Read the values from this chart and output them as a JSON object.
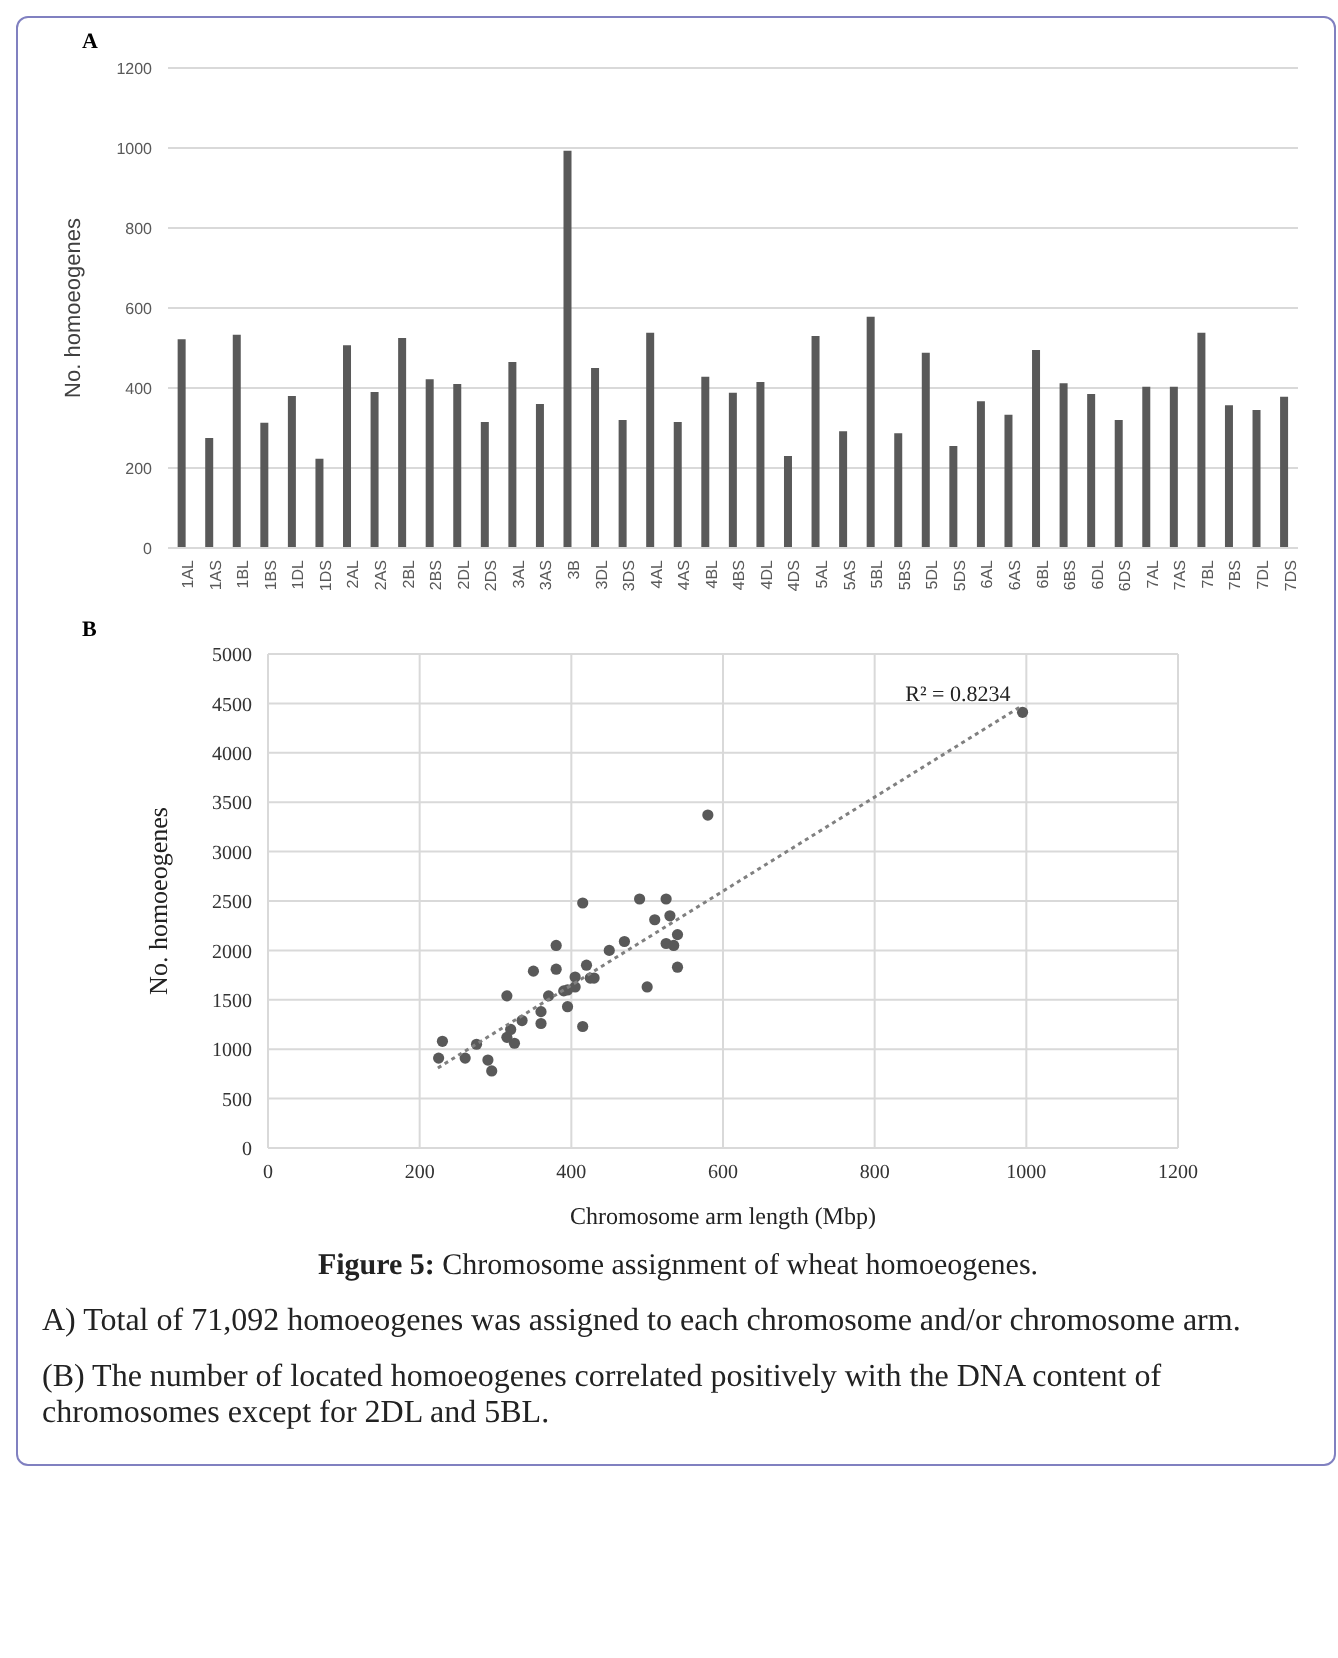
{
  "chart_data": [
    {
      "type": "bar",
      "title": "A",
      "ylabel": "No. homoeogenes",
      "categories": [
        "1AL",
        "1AS",
        "1BL",
        "1BS",
        "1DL",
        "1DS",
        "2AL",
        "2AS",
        "2BL",
        "2BS",
        "2DL",
        "2DS",
        "3AL",
        "3AS",
        "3B",
        "3DL",
        "3DS",
        "4AL",
        "4AS",
        "4BL",
        "4BS",
        "4DL",
        "4DS",
        "5AL",
        "5AS",
        "5BL",
        "5BS",
        "5DL",
        "5DS",
        "6AL",
        "6AS",
        "6BL",
        "6BS",
        "6DL",
        "6DS",
        "7AL",
        "7AS",
        "7BL",
        "7BS",
        "7DL",
        "7DS"
      ],
      "values": [
        522,
        275,
        533,
        313,
        380,
        223,
        507,
        390,
        525,
        422,
        410,
        315,
        465,
        360,
        993,
        450,
        320,
        538,
        315,
        428,
        388,
        415,
        230,
        530,
        292,
        578,
        287,
        488,
        255,
        367,
        333,
        495,
        412,
        385,
        320,
        403,
        403,
        538,
        357,
        345,
        378
      ],
      "color": "#595959",
      "ylim": [
        0,
        1200
      ],
      "yticks": [
        0,
        200,
        400,
        600,
        800,
        1000,
        1200
      ],
      "grid": "y"
    },
    {
      "type": "scatter",
      "title": "B",
      "xlabel": "Chromosome arm length (Mbp)",
      "ylabel": "No. homoeogenes",
      "xlim": [
        0,
        1200
      ],
      "xticks": [
        0,
        200,
        400,
        600,
        800,
        1000,
        1200
      ],
      "ylim": [
        0,
        5000
      ],
      "yticks": [
        0,
        500,
        1000,
        1500,
        2000,
        2500,
        3000,
        3500,
        4000,
        4500,
        5000
      ],
      "grid": true,
      "marker": "circle",
      "series": [
        {
          "type": "scatter",
          "color": "#595959",
          "x": [
            225,
            230,
            260,
            275,
            290,
            295,
            315,
            315,
            320,
            325,
            335,
            350,
            360,
            360,
            370,
            380,
            380,
            390,
            395,
            395,
            405,
            405,
            415,
            415,
            420,
            425,
            430,
            450,
            470,
            490,
            500,
            510,
            525,
            525,
            530,
            535,
            540,
            540,
            580,
            995
          ],
          "values": [
            910,
            1080,
            910,
            1050,
            890,
            780,
            1540,
            1120,
            1200,
            1060,
            1290,
            1790,
            1260,
            1380,
            1540,
            2050,
            1810,
            1590,
            1430,
            1600,
            1630,
            1730,
            2480,
            1230,
            1850,
            1720,
            1720,
            2000,
            2090,
            2520,
            1630,
            2310,
            2070,
            2520,
            2350,
            2050,
            2160,
            1830,
            3370,
            4410
          ]
        },
        {
          "type": "line",
          "color": "#808080",
          "line_style": "dotted",
          "marker": "none",
          "x": [
            224,
            995
          ],
          "values": [
            810,
            4480
          ]
        }
      ],
      "annotations": [
        {
          "text": "R² = 0.8234",
          "x": 995,
          "y": 4480
        },
        "Figure 5: Chromosome assignment of wheat homoeogenes.",
        "A) Total of 71,092 homoeogenes was assigned to each chromosome and/or chromosome arm.",
        "(B) The number of located homoeogenes correlated positively with the DNA content of chromosomes except for 2DL and 5BL."
      ]
    }
  ]
}
